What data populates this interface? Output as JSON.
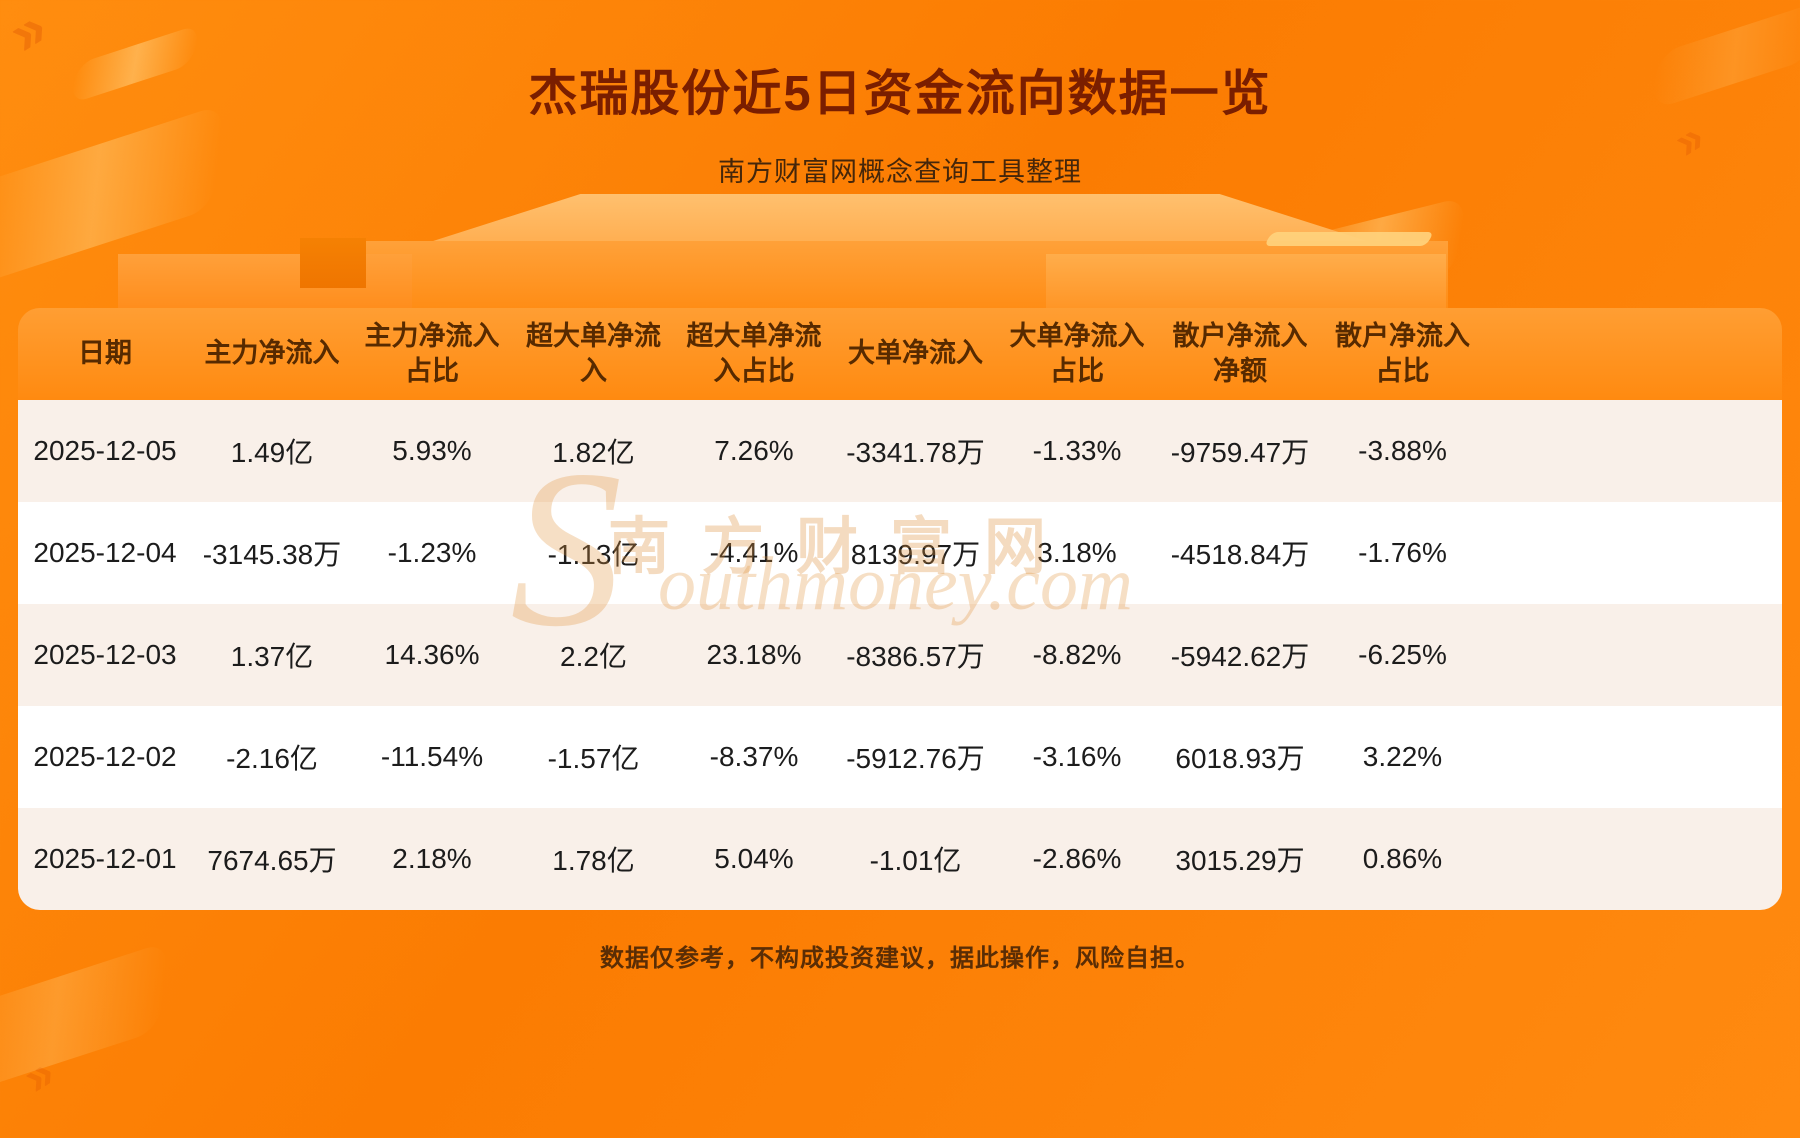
{
  "page": {
    "title": "杰瑞股份近5日资金流向数据一览",
    "subtitle": "南方财富网概念查询工具整理",
    "disclaimer": "数据仅参考，不构成投资建议，据此操作，风险自担。"
  },
  "watermark": {
    "initial": "S",
    "cn": "南方财富网",
    "en": "outhmoney.com"
  },
  "colors": {
    "background_orange": "#fb7f04",
    "table_header_orange": "#ff9226",
    "row_alt_cream": "#f9f0e9",
    "row_white": "#ffffff",
    "title_text": "#7a1e00",
    "header_text": "#572a00",
    "body_text": "#1c1c1c"
  },
  "chart_data": {
    "type": "table",
    "title": "杰瑞股份近5日资金流向数据一览",
    "columns": [
      "日期",
      "主力净流入",
      "主力净流入\n占比",
      "超大单净流\n入",
      "超大单净流\n入占比",
      "大单净流入",
      "大单净流入\n占比",
      "散户净流入\n净额",
      "散户净流入\n占比"
    ],
    "rows": [
      [
        "2025-12-05",
        "1.49亿",
        "5.93%",
        "1.82亿",
        "7.26%",
        "-3341.78万",
        "-1.33%",
        "-9759.47万",
        "-3.88%"
      ],
      [
        "2025-12-04",
        "-3145.38万",
        "-1.23%",
        "-1.13亿",
        "-4.41%",
        "8139.97万",
        "3.18%",
        "-4518.84万",
        "-1.76%"
      ],
      [
        "2025-12-03",
        "1.37亿",
        "14.36%",
        "2.2亿",
        "23.18%",
        "-8386.57万",
        "-8.82%",
        "-5942.62万",
        "-6.25%"
      ],
      [
        "2025-12-02",
        "-2.16亿",
        "-11.54%",
        "-1.57亿",
        "-8.37%",
        "-5912.76万",
        "-3.16%",
        "6018.93万",
        "3.22%"
      ],
      [
        "2025-12-01",
        "7674.65万",
        "2.18%",
        "1.78亿",
        "5.04%",
        "-1.01亿",
        "-2.86%",
        "3015.29万",
        "0.86%"
      ]
    ]
  }
}
